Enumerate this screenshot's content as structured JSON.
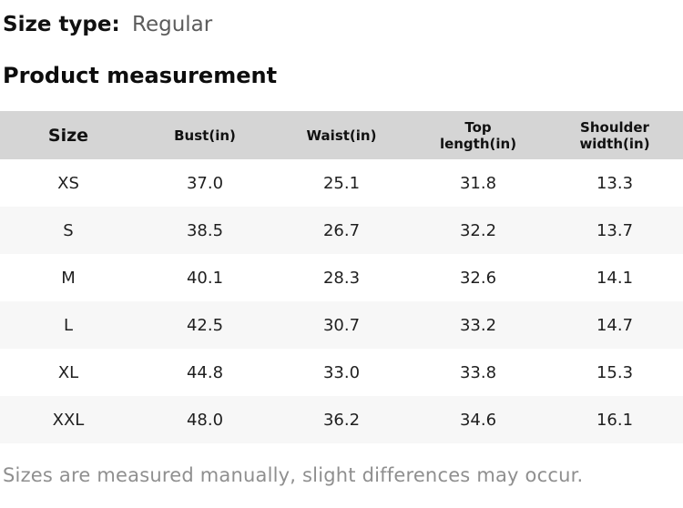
{
  "size_type": {
    "label": "Size type:",
    "value": "Regular"
  },
  "section_title": "Product measurement",
  "table": {
    "columns": [
      "Size",
      "Bust(in)",
      "Waist(in)",
      "Top length(in)",
      "Shoulder width(in)"
    ],
    "rows": [
      {
        "size": "XS",
        "values": [
          "37.0",
          "25.1",
          "31.8",
          "13.3"
        ]
      },
      {
        "size": "S",
        "values": [
          "38.5",
          "26.7",
          "32.2",
          "13.7"
        ]
      },
      {
        "size": "M",
        "values": [
          "40.1",
          "28.3",
          "32.6",
          "14.1"
        ]
      },
      {
        "size": "L",
        "values": [
          "42.5",
          "30.7",
          "33.2",
          "14.7"
        ]
      },
      {
        "size": "XL",
        "values": [
          "44.8",
          "33.0",
          "33.8",
          "15.3"
        ]
      },
      {
        "size": "XXL",
        "values": [
          "48.0",
          "36.2",
          "34.6",
          "16.1"
        ]
      }
    ]
  },
  "footnote": "Sizes are measured manually, slight differences may occur.",
  "colors": {
    "header_bg": "#d5d5d5",
    "alt_row_bg": "#f7f7f7",
    "muted_text": "#8f8f8f",
    "secondary_text": "#5c5c5c"
  }
}
